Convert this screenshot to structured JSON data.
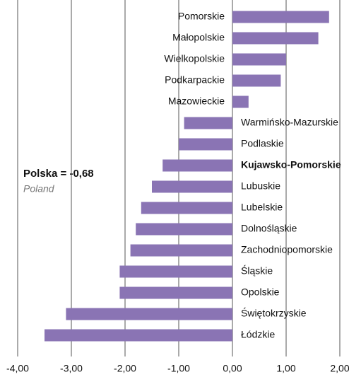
{
  "chart_data": {
    "type": "barh",
    "categories": [
      "Pomorskie",
      "Małopolskie",
      "Wielkopolskie",
      "Podkarpackie",
      "Mazowieckie",
      "Warmińsko-Mazurskie",
      "Podlaskie",
      "Kujawsko-Pomorskie",
      "Lubuskie",
      "Lubelskie",
      "Dolnośląskie",
      "Zachodniopomorskie",
      "Śląskie",
      "Opolskie",
      "Świętokrzyskie",
      "Łódzkie"
    ],
    "values": [
      1.8,
      1.6,
      1.0,
      0.9,
      0.3,
      -0.9,
      -1.0,
      -1.3,
      -1.5,
      -1.7,
      -1.8,
      -1.9,
      -2.1,
      -2.1,
      -3.1,
      -3.5
    ],
    "color": "#8a74b4",
    "bold_category_index": 7,
    "xlim": [
      -4,
      2
    ],
    "xticks": [
      {
        "value": -4,
        "label": "-4,00"
      },
      {
        "value": -3,
        "label": "-3,00"
      },
      {
        "value": -2,
        "label": "-2,00"
      },
      {
        "value": -1,
        "label": "-1,00"
      },
      {
        "value": 0,
        "label": "0,00"
      },
      {
        "value": 1,
        "label": "1,00"
      },
      {
        "value": 2,
        "label": "2,00"
      }
    ],
    "grid": true,
    "annotations": [
      "Polska = -0,68",
      "Poland"
    ]
  }
}
